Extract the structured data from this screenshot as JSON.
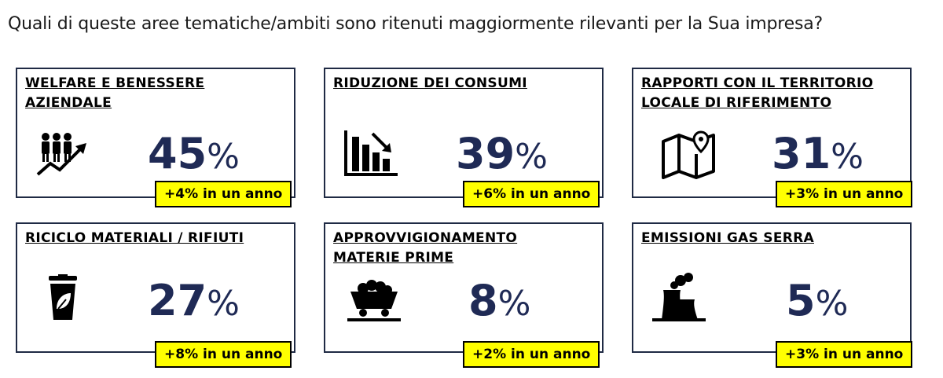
{
  "question": "Quali di queste aree tematiche/ambiti sono ritenuti maggiormente rilevanti per la Sua impresa?",
  "chart_data": {
    "type": "table",
    "title": "Quali di queste aree tematiche/ambiti sono ritenuti maggiormente rilevanti per la Sua impresa?",
    "categories": [
      "WELFARE E BENESSERE AZIENDALE",
      "RIDUZIONE DEI CONSUMI",
      "RAPPORTI CON IL TERRITORIO LOCALE DI RIFERIMENTO",
      "RICICLO MATERIALI / RIFIUTI",
      "APPROVVIGIONAMENTO MATERIE PRIME",
      "EMISSIONI GAS SERRA"
    ],
    "values": [
      45,
      39,
      31,
      27,
      8,
      5
    ],
    "unit": "%"
  },
  "cards": [
    {
      "title_lines": [
        "WELFARE E BENESSERE",
        "AZIENDALE"
      ],
      "value": "45",
      "unit": "%",
      "change": "+4% in un anno",
      "icon": "people-growth-icon"
    },
    {
      "title_lines": [
        "RIDUZIONE DEI CONSUMI",
        ""
      ],
      "value": "39",
      "unit": "%",
      "change": "+6% in un anno",
      "icon": "bar-chart-down-icon"
    },
    {
      "title_lines": [
        "RAPPORTI CON IL TERRITORIO",
        "LOCALE DI RIFERIMENTO"
      ],
      "value": "31",
      "unit": "%",
      "change": "+3% in un anno",
      "icon": "map-pin-icon"
    },
    {
      "title_lines": [
        "RICICLO MATERIALI / RIFIUTI",
        ""
      ],
      "value": "27",
      "unit": "%",
      "change": "+8% in un anno",
      "icon": "eco-bin-icon"
    },
    {
      "title_lines": [
        "APPROVVIGIONAMENTO",
        "MATERIE PRIME"
      ],
      "value": "8",
      "unit": "%",
      "change": "+2% in un anno",
      "icon": "mine-cart-icon"
    },
    {
      "title_lines": [
        "EMISSIONI GAS SERRA",
        ""
      ],
      "value": "5",
      "unit": "%",
      "change": "+3% in un anno",
      "icon": "factory-smoke-icon"
    }
  ]
}
